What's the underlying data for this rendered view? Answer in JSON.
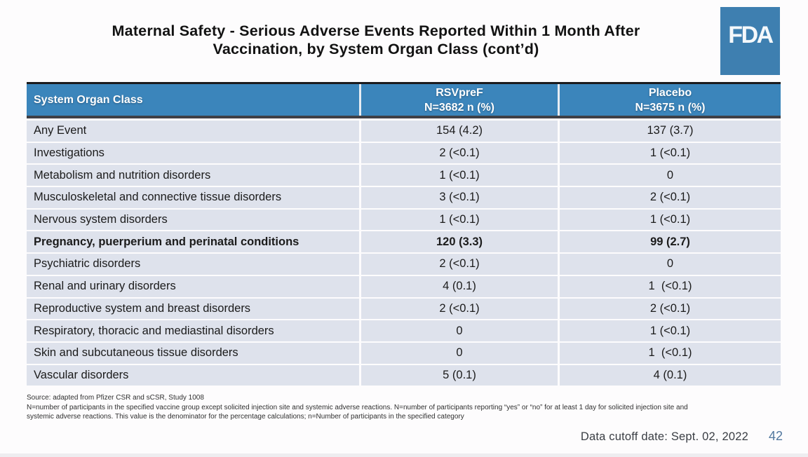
{
  "slide": {
    "title_line1": "Maternal Safety - Serious Adverse Events Reported Within 1 Month After",
    "title_line2": "Vaccination, by System Organ Class (cont’d)",
    "logo_text": "FDA",
    "footnotes": [
      "Source: adapted from Pfizer CSR and sCSR, Study 1008",
      "N=number of participants in the specified vaccine group except solicited injection site and systemic adverse reactions. N=number of participants reporting “yes” or “no” for at least 1 day for solicited injection site and",
      "systemic adverse reactions. This value is the denominator for the percentage calculations; n=Number of participants in the specified category"
    ],
    "footer": {
      "data_cutoff": "Data cutoff date: Sept. 02, 2022",
      "page_number": "42"
    }
  },
  "table": {
    "header": {
      "col1": "System Organ Class",
      "col2_line1": "RSVpreF",
      "col2_line2": "N=3682 n (%)",
      "col3_line1": "Placebo",
      "col3_line2": "N=3675 n (%)"
    },
    "rows": [
      {
        "soc": "Any Event",
        "rsvpref": "154 (4.2)",
        "placebo": "137 (3.7)"
      },
      {
        "soc": "Investigations",
        "rsvpref": "2 (<0.1)",
        "placebo": "1 (<0.1)"
      },
      {
        "soc": "Metabolism and nutrition disorders",
        "rsvpref": "1 (<0.1)",
        "placebo": "0"
      },
      {
        "soc": "Musculoskeletal and connective tissue disorders",
        "rsvpref": "3 (<0.1)",
        "placebo": "2 (<0.1)"
      },
      {
        "soc": "Nervous system disorders",
        "rsvpref": "1 (<0.1)",
        "placebo": "1 (<0.1)"
      },
      {
        "soc": "Pregnancy, puerperium and perinatal conditions",
        "rsvpref": "120 (3.3)",
        "placebo": "99 (2.7)"
      },
      {
        "soc": "Psychiatric disorders",
        "rsvpref": "2 (<0.1)",
        "placebo": "0"
      },
      {
        "soc": "Renal and urinary disorders",
        "rsvpref": "4 (0.1)",
        "placebo": "1  (<0.1)"
      },
      {
        "soc": "Reproductive system and breast disorders",
        "rsvpref": "2 (<0.1)",
        "placebo": "2 (<0.1)"
      },
      {
        "soc": "Respiratory, thoracic and mediastinal disorders",
        "rsvpref": "0",
        "placebo": "1 (<0.1)"
      },
      {
        "soc": "Skin and subcutaneous tissue disorders",
        "rsvpref": "0",
        "placebo": "1  (<0.1)"
      },
      {
        "soc": "Vascular disorders",
        "rsvpref": "5 (0.1)",
        "placebo": "4 (0.1)"
      }
    ]
  },
  "colors": {
    "header_blue": "#3b85bb",
    "row_bg": "#dee2ec",
    "logo_blue": "#3e7fb0",
    "page_number_blue": "#51779e",
    "header_top_border": "#1b1b1d",
    "header_bottom_border": "#3f4046"
  }
}
